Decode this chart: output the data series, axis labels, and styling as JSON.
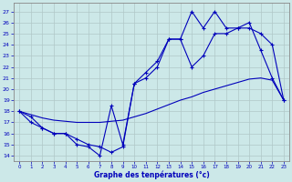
{
  "xlabel": "Graphe des tenpératures (°c)",
  "x_ticks": [
    0,
    1,
    2,
    3,
    4,
    5,
    6,
    7,
    8,
    9,
    10,
    11,
    12,
    13,
    14,
    15,
    16,
    17,
    18,
    19,
    20,
    21,
    22,
    23
  ],
  "y_ticks": [
    14,
    15,
    16,
    17,
    18,
    19,
    20,
    21,
    22,
    23,
    24,
    25,
    26,
    27
  ],
  "ylim": [
    13.5,
    27.8
  ],
  "xlim": [
    -0.5,
    23.5
  ],
  "bg_color": "#cce8e8",
  "line_color": "#0000bb",
  "grid_color": "#b0c8c8",
  "s1_x": [
    0,
    1,
    2,
    3,
    4,
    5,
    6,
    7,
    8,
    9,
    10,
    11,
    12,
    13,
    14,
    15,
    16,
    17,
    18,
    19,
    20,
    21,
    22,
    23
  ],
  "s1_y": [
    18.0,
    17.5,
    16.5,
    16.0,
    16.0,
    15.0,
    14.8,
    14.0,
    18.5,
    15.0,
    20.5,
    21.5,
    22.5,
    24.5,
    24.5,
    27.0,
    25.5,
    27.0,
    25.5,
    25.5,
    26.0,
    23.5,
    21.0,
    19.0
  ],
  "s2_x": [
    0,
    1,
    2,
    3,
    4,
    5,
    6,
    7,
    8,
    9,
    10,
    11,
    12,
    13,
    14,
    15,
    16,
    17,
    18,
    19,
    20,
    21,
    22,
    23
  ],
  "s2_y": [
    18.0,
    17.0,
    16.5,
    16.0,
    16.0,
    15.5,
    15.0,
    14.8,
    14.3,
    14.8,
    20.5,
    21.0,
    22.0,
    24.5,
    24.5,
    22.0,
    23.0,
    25.0,
    25.0,
    25.5,
    25.5,
    25.0,
    24.0,
    19.0
  ],
  "s3_x": [
    0,
    1,
    2,
    3,
    4,
    5,
    6,
    7,
    8,
    9,
    10,
    11,
    12,
    13,
    14,
    15,
    16,
    17,
    18,
    19,
    20,
    21,
    22,
    23
  ],
  "s3_y": [
    18.0,
    17.7,
    17.4,
    17.2,
    17.1,
    17.0,
    17.0,
    17.0,
    17.1,
    17.2,
    17.5,
    17.8,
    18.2,
    18.6,
    19.0,
    19.3,
    19.7,
    20.0,
    20.3,
    20.6,
    20.9,
    21.0,
    20.8,
    19.0
  ]
}
